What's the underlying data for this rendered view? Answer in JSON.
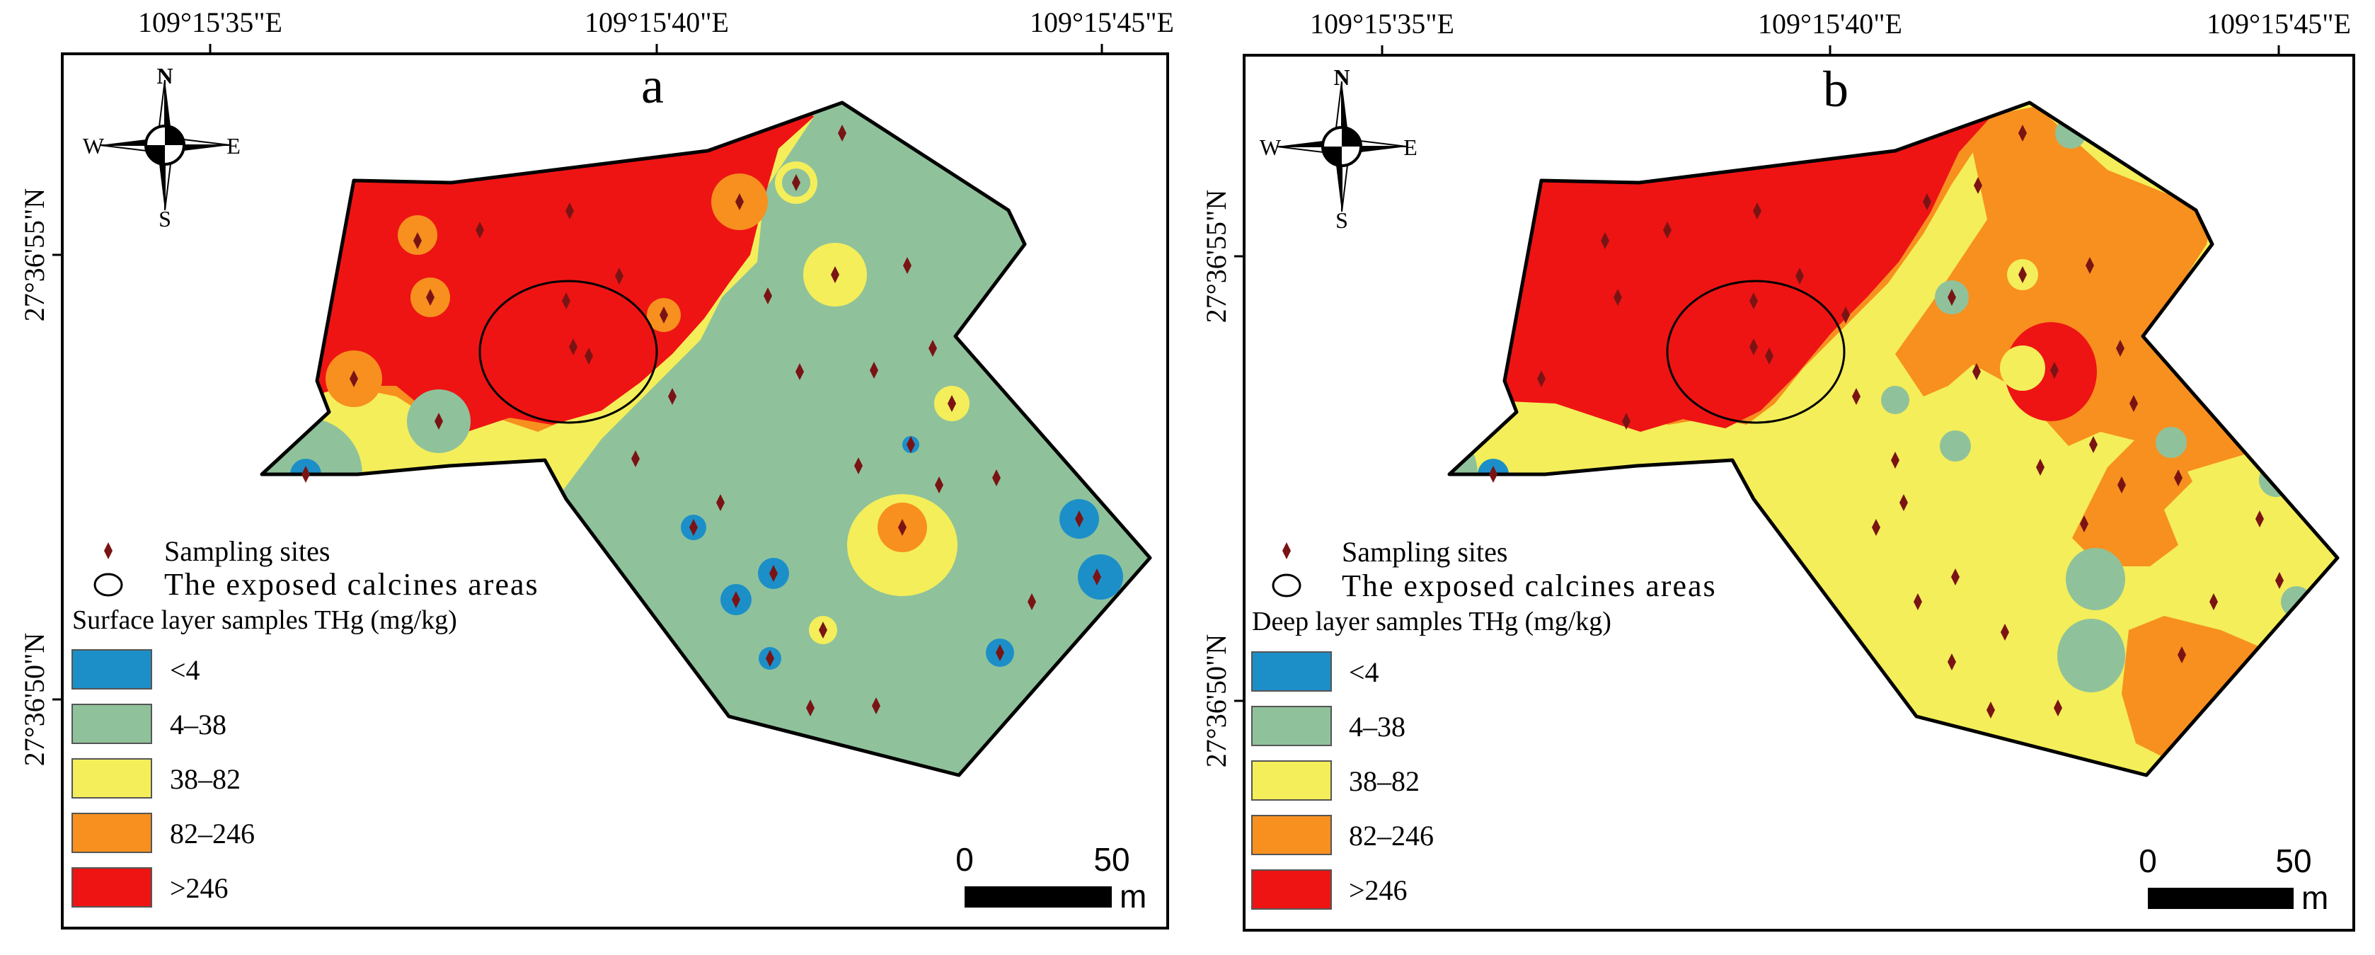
{
  "colors": {
    "lt4": "#1c8fc9",
    "c4_38": "#8fc29b",
    "c38_82": "#f4ee5a",
    "c82_246": "#f7901f",
    "gt246": "#ee1414",
    "site": "#7a1414"
  },
  "axes": {
    "top_ticks": [
      "109°15'35\"E",
      "109°15'40\"E",
      "109°15'45\"E"
    ],
    "left_ticks": [
      "27°36'55\"N",
      "27°36'50\"N"
    ]
  },
  "compass": {
    "n": "N",
    "s": "S",
    "e": "E",
    "w": "W"
  },
  "legend": {
    "sampling_sites": "Sampling sites",
    "calcines": "The exposed calcines areas",
    "classes": [
      "<4",
      "4–38",
      "38–82",
      "82–246",
      ">246"
    ]
  },
  "scalebar": {
    "zero": "0",
    "fifty": "50",
    "unit": "m"
  },
  "panels": [
    {
      "label": "a",
      "legend_title": "Surface layer samples THg (mg/kg)"
    },
    {
      "label": "b",
      "legend_title": "Deep layer samples THg (mg/kg)"
    }
  ]
}
